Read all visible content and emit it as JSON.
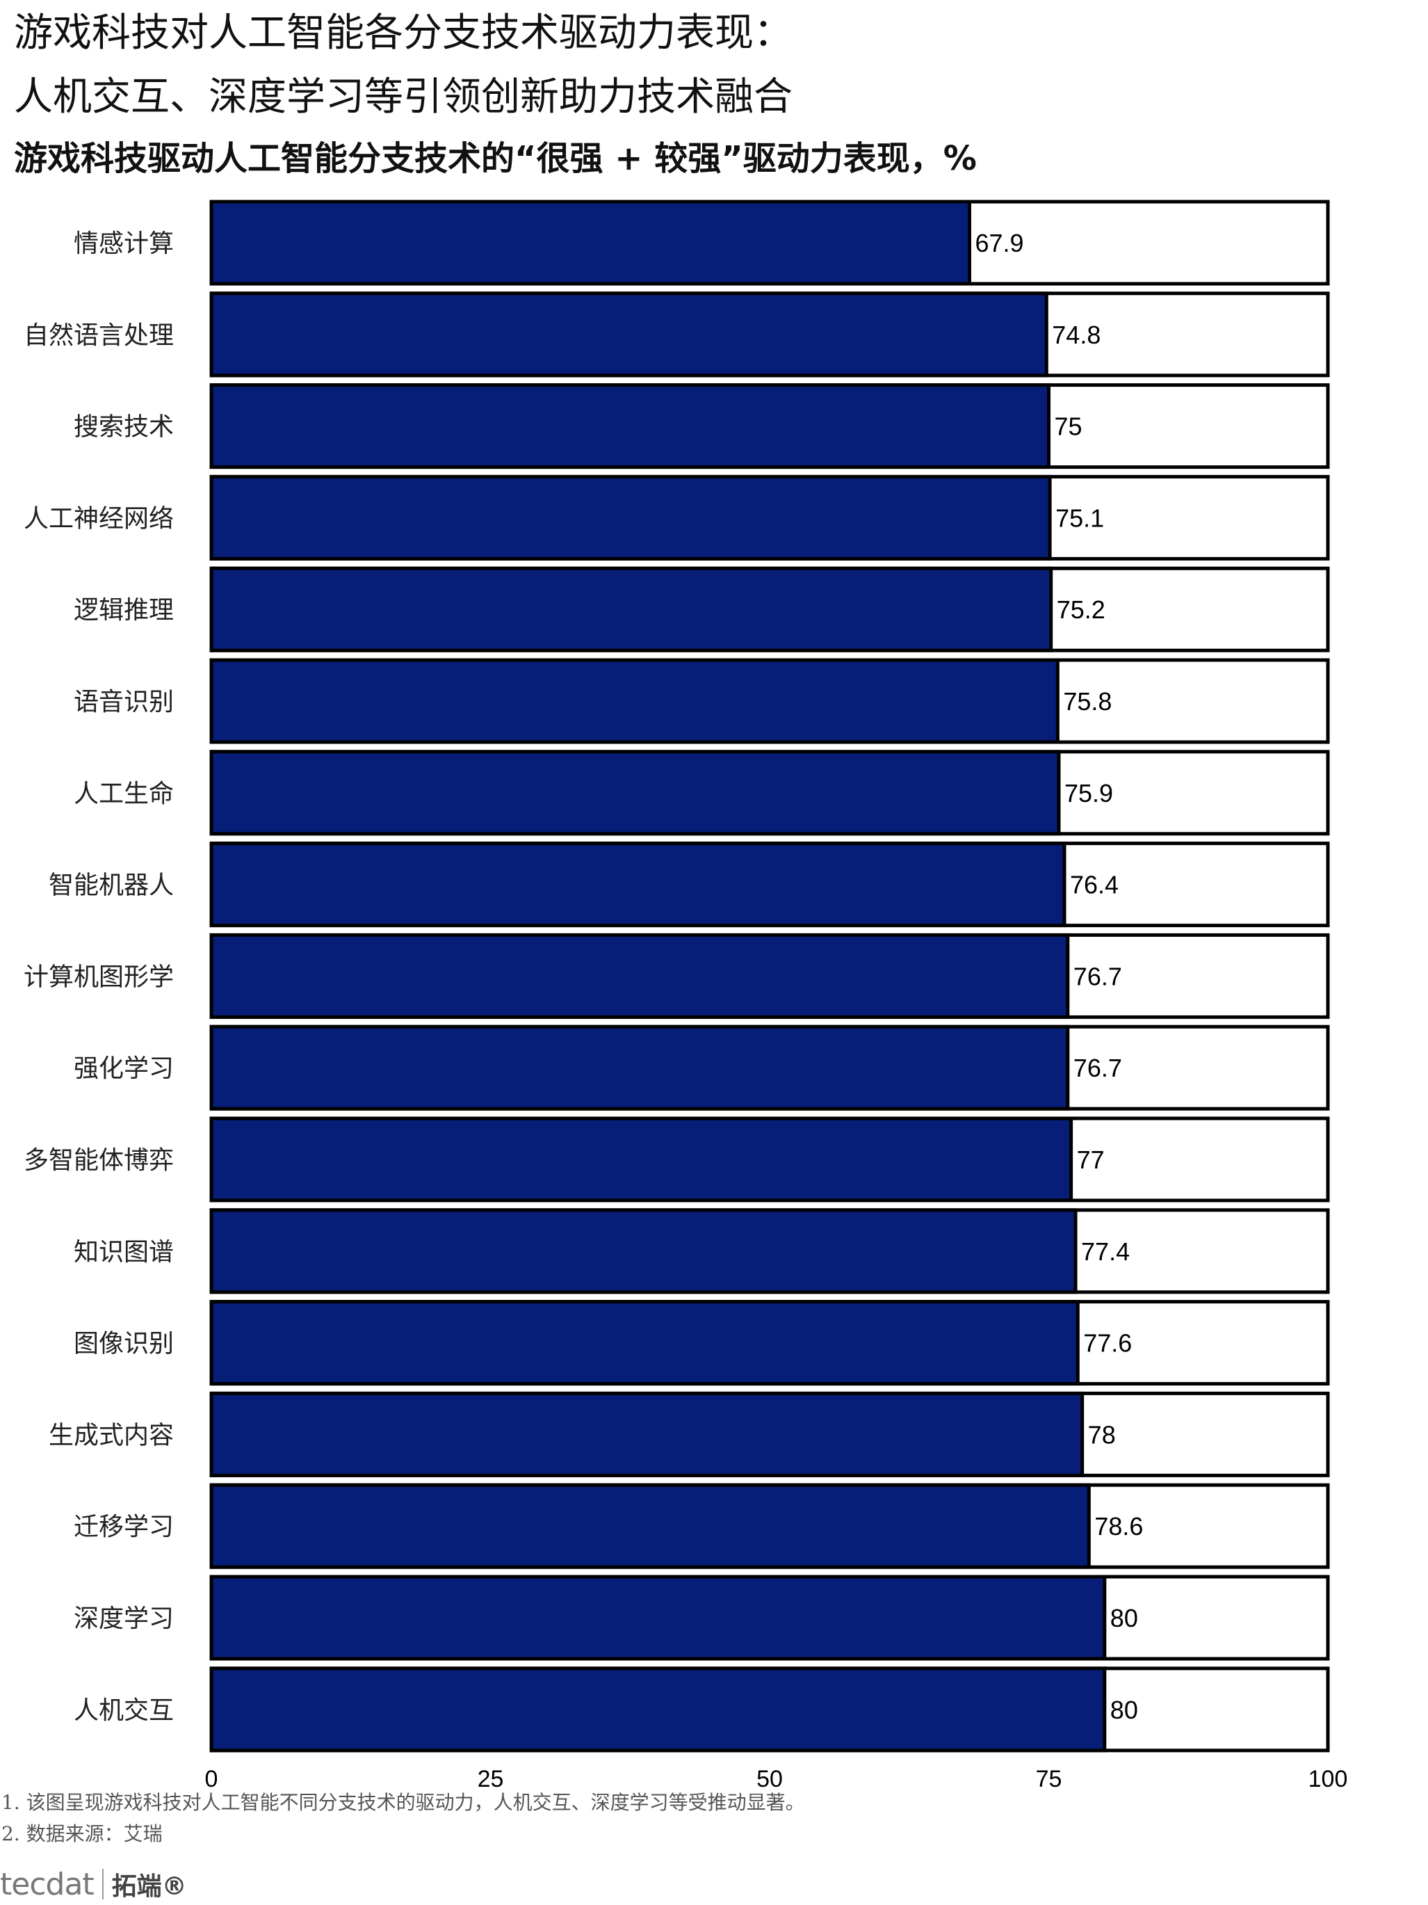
{
  "title_line1": "游戏科技对人工智能各分支技术驱动力表现：",
  "title_line2": "人机交互、深度学习等引领创新助力技术融合",
  "subtitle": "游戏科技驱动人工智能分支技术的“很强 + 较强”驱动力表现，%",
  "notes": [
    "1. 该图呈现游戏科技对人工智能不同分支技术的驱动力，人机交互、深度学习等受推动显著。",
    "2. 数据来源：艾瑞"
  ],
  "logo": {
    "mark": "tecdat",
    "text": "拓端®"
  },
  "colors": {
    "bar_fill": "#061E78",
    "track_fill": "#FFFFFF",
    "border": "#000000"
  },
  "chart_data": {
    "type": "bar",
    "orientation": "horizontal",
    "categories": [
      "情感计算",
      "自然语言处理",
      "搜索技术",
      "人工神经网络",
      "逻辑推理",
      "语音识别",
      "人工生命",
      "智能机器人",
      "计算机图形学",
      "强化学习",
      "多智能体博弈",
      "知识图谱",
      "图像识别",
      "生成式内容",
      "迁移学习",
      "深度学习",
      "人机交互"
    ],
    "values": [
      67.9,
      74.8,
      75,
      75.1,
      75.2,
      75.8,
      75.9,
      76.4,
      76.7,
      76.7,
      77,
      77.4,
      77.6,
      78,
      78.6,
      80,
      80
    ],
    "value_labels": [
      "67.9",
      "74.8",
      "75",
      "75.1",
      "75.2",
      "75.8",
      "75.9",
      "76.4",
      "76.7",
      "76.7",
      "77",
      "77.4",
      "77.6",
      "78",
      "78.6",
      "80",
      "80"
    ],
    "xlim": [
      0,
      100
    ],
    "xticks": [
      0,
      25,
      50,
      75,
      100
    ],
    "xtick_labels": [
      "0",
      "25",
      "50",
      "75",
      "100"
    ],
    "xlabel": "",
    "ylabel": "",
    "grid": false,
    "legend": "none"
  }
}
